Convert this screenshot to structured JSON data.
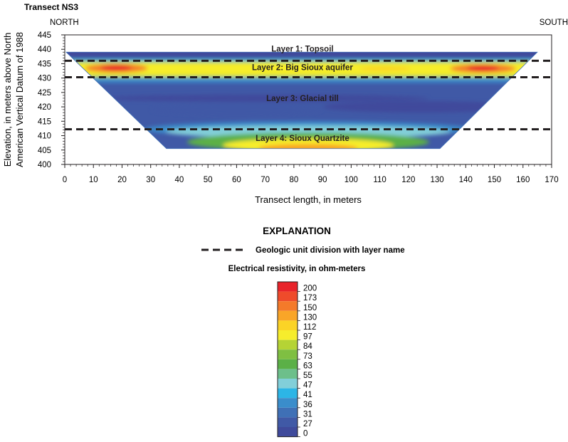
{
  "chart_data": {
    "type": "heatmap",
    "title": "Transect NS3",
    "direction_left": "NORTH",
    "direction_right": "SOUTH",
    "xlabel": "Transect length, in meters",
    "ylabel_line1": "Elevation, in meters above North",
    "ylabel_line2": "American Vertical Datum of 1988",
    "xlim": [
      0,
      170
    ],
    "ylim": [
      400,
      445
    ],
    "x_ticks": [
      "0",
      "10",
      "20",
      "30",
      "40",
      "50",
      "60",
      "70",
      "80",
      "90",
      "100",
      "110",
      "120",
      "130",
      "140",
      "150",
      "160",
      "170"
    ],
    "y_ticks": [
      "400",
      "405",
      "410",
      "415",
      "420",
      "425",
      "430",
      "435",
      "440",
      "445"
    ],
    "section_outline": [
      [
        0.5,
        439
      ],
      [
        165,
        439
      ],
      [
        131,
        405.5
      ],
      [
        35.5,
        405.5
      ]
    ],
    "layer_divisions": [
      {
        "elevation": 436,
        "label": "Layer 1: Topsoil",
        "label_x": 83,
        "label_y": 439.2
      },
      {
        "elevation": 430.3,
        "label": "Layer 2: Big Sioux aquifer",
        "label_x": 83,
        "label_y": 432.8
      },
      {
        "elevation": 412.2,
        "label": "Layer 3: Glacial till",
        "label_x": 83,
        "label_y": 422.0
      },
      {
        "elevation": null,
        "label": "Layer 4: Sioux Quartzite",
        "label_x": 83,
        "label_y": 408.2
      }
    ]
  },
  "explanation": {
    "title": "EXPLANATION",
    "division_label": "Geologic unit division with layer name",
    "colorbar_title": "Electrical resistivity, in ohm-meters",
    "colorbar_labels": [
      "200",
      "173",
      "150",
      "130",
      "112",
      "97",
      "84",
      "73",
      "63",
      "55",
      "47",
      "41",
      "36",
      "31",
      "27",
      "0"
    ],
    "colorbar_colors": [
      "#e8232a",
      "#ef4b2b",
      "#f47a2a",
      "#f9a528",
      "#fbd326",
      "#f6ed2c",
      "#b5d335",
      "#7fbf42",
      "#5bb047",
      "#6dbf8b",
      "#82cfd9",
      "#2cb5e6",
      "#3a8dcb",
      "#3f70b6",
      "#4059a6",
      "#3f4a9b"
    ]
  }
}
